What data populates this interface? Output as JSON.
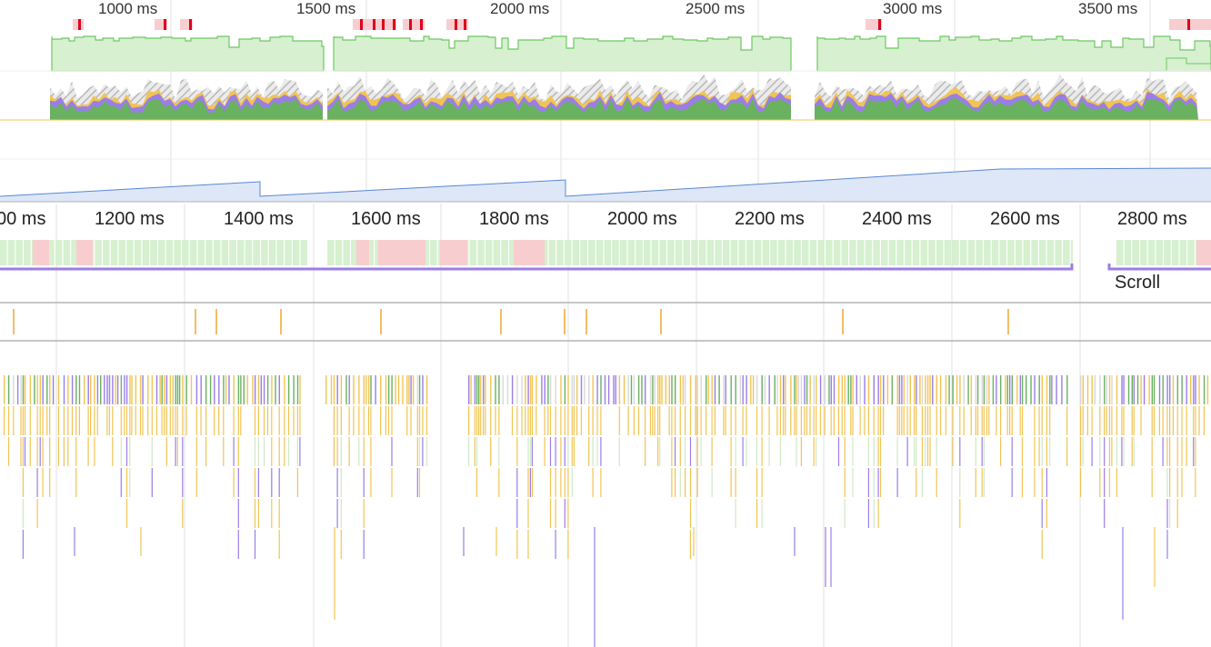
{
  "overview": {
    "ticks": [
      "1000 ms",
      "1500 ms",
      "2000 ms",
      "2500 ms",
      "3000 ms",
      "3500 ms"
    ]
  },
  "main": {
    "ticks": [
      "00 ms",
      "1200 ms",
      "1400 ms",
      "1600 ms",
      "1800 ms",
      "2000 ms",
      "2200 ms",
      "2400 ms",
      "2600 ms",
      "2800 ms"
    ]
  },
  "interactions": {
    "scroll_label": "Scroll"
  },
  "colors": {
    "fps_fill": "#d6f0d0",
    "fps_line": "#6ec862",
    "long_frame": "#f8cdd0",
    "long_frame_marker": "#e0001b",
    "cpu_scripting": "#f1c453",
    "cpu_rendering": "#9a7ee6",
    "cpu_painting": "#6ab160",
    "cpu_other": "#c8c8c8",
    "heap_fill": "#dde7f7",
    "heap_line": "#5a87d8",
    "frame_good": "#d6f0d0",
    "frame_dropped": "#f8cdd0",
    "interaction_bar": "#9c7ee0",
    "marker": "#f1a533",
    "grid": "#e0e0e0",
    "divider": "#b4b4b4"
  }
}
